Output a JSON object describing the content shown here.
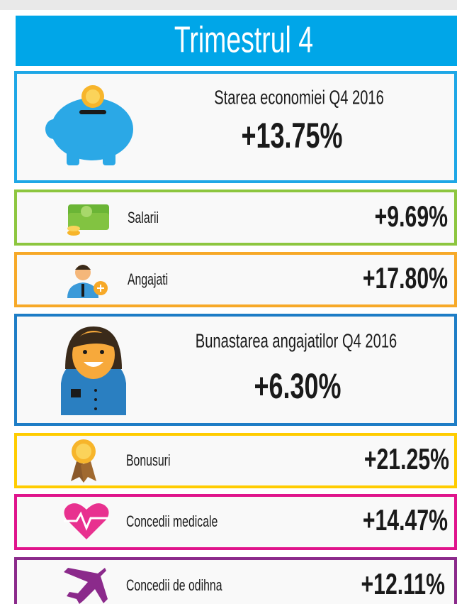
{
  "header": {
    "title": "Trimestrul 4"
  },
  "sections": [
    {
      "label": "Starea economiei Q4 2016",
      "value": "+13.75%"
    },
    {
      "label": "Salarii",
      "value": "+9.69%"
    },
    {
      "label": "Angajati",
      "value": "+17.80%"
    },
    {
      "label": "Bunastarea angajatilor Q4 2016",
      "value": "+6.30%"
    },
    {
      "label": "Bonusuri",
      "value": "+21.25%"
    },
    {
      "label": "Concedii medicale",
      "value": "+14.47%"
    },
    {
      "label": "Concedii de odihna",
      "value": "+12.11%"
    }
  ]
}
